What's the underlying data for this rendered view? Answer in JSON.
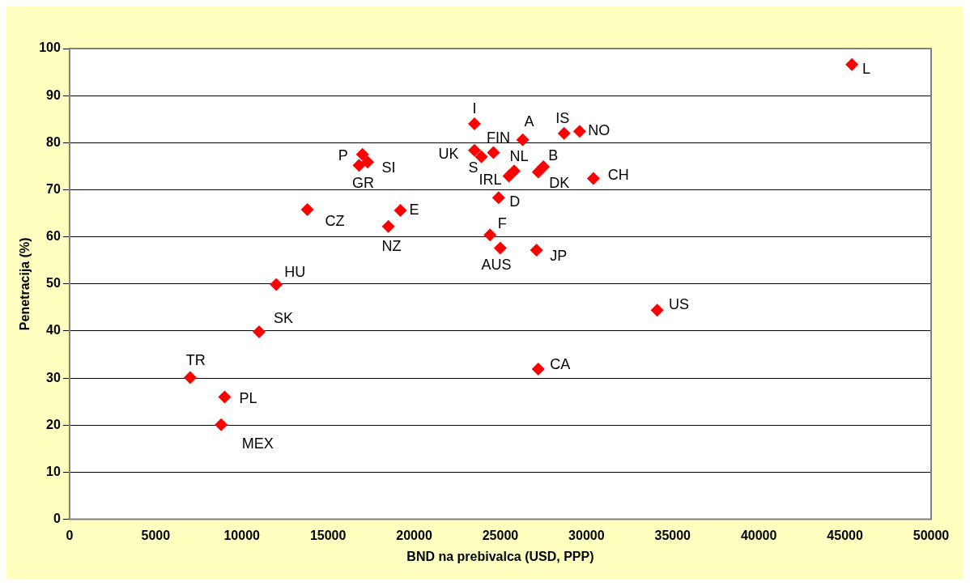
{
  "chart_data": {
    "type": "scatter",
    "xlabel": "BND na prebivalca (USD, PPP)",
    "ylabel": "Penetracija (%)",
    "xlim": [
      0,
      50000
    ],
    "xticks": [
      0,
      5000,
      10000,
      15000,
      20000,
      25000,
      30000,
      35000,
      40000,
      45000,
      50000
    ],
    "ylim": [
      0,
      100
    ],
    "yticks": [
      0,
      10,
      20,
      30,
      40,
      50,
      60,
      70,
      80,
      90,
      100
    ],
    "grid": "y",
    "legend": false,
    "marker": "diamond",
    "series": [
      {
        "color": "#ff0000",
        "x": [
          45400,
          23500,
          26300,
          28700,
          29600,
          23500,
          23900,
          24600,
          25500,
          25800,
          27500,
          27200,
          30400,
          24900,
          24400,
          25000,
          27100,
          13800,
          19200,
          18500,
          17000,
          17300,
          16800,
          12000,
          11000,
          7000,
          9000,
          8800,
          27200,
          34100
        ],
        "values": [
          96.6,
          84.0,
          80.6,
          82.0,
          82.4,
          78.4,
          77.0,
          77.9,
          72.9,
          74.0,
          74.9,
          73.8,
          72.4,
          68.3,
          60.4,
          57.6,
          57.2,
          65.8,
          65.6,
          62.2,
          77.5,
          75.9,
          75.2,
          49.9,
          39.8,
          30.1,
          26.0,
          20.1,
          31.9,
          44.4
        ]
      }
    ],
    "annotations": [
      {
        "text": "L",
        "x": 45400,
        "y": 96.6
      },
      {
        "text": "I",
        "x": 23500,
        "y": 84.0
      },
      {
        "text": "A",
        "x": 26300,
        "y": 80.6
      },
      {
        "text": "IS",
        "x": 28700,
        "y": 82.0
      },
      {
        "text": "NO",
        "x": 29600,
        "y": 82.4
      },
      {
        "text": "UK",
        "x": 23500,
        "y": 78.4
      },
      {
        "text": "S",
        "x": 23900,
        "y": 77.0
      },
      {
        "text": "FIN",
        "x": 24600,
        "y": 77.9
      },
      {
        "text": "IRL",
        "x": 25500,
        "y": 72.9
      },
      {
        "text": "NL",
        "x": 25800,
        "y": 74.0
      },
      {
        "text": "B",
        "x": 27500,
        "y": 74.9
      },
      {
        "text": "DK",
        "x": 27200,
        "y": 73.8
      },
      {
        "text": "CH",
        "x": 30400,
        "y": 72.4
      },
      {
        "text": "D",
        "x": 24900,
        "y": 68.3
      },
      {
        "text": "F",
        "x": 24400,
        "y": 60.4
      },
      {
        "text": "AUS",
        "x": 25000,
        "y": 57.6
      },
      {
        "text": "JP",
        "x": 27100,
        "y": 57.2
      },
      {
        "text": "CZ",
        "x": 13800,
        "y": 65.8
      },
      {
        "text": "E",
        "x": 19200,
        "y": 65.6
      },
      {
        "text": "NZ",
        "x": 18500,
        "y": 62.2
      },
      {
        "text": "P",
        "x": 17000,
        "y": 77.5
      },
      {
        "text": "SI",
        "x": 17300,
        "y": 75.9
      },
      {
        "text": "GR",
        "x": 16800,
        "y": 75.2
      },
      {
        "text": "HU",
        "x": 12000,
        "y": 49.9
      },
      {
        "text": "SK",
        "x": 11000,
        "y": 39.8
      },
      {
        "text": "TR",
        "x": 7000,
        "y": 30.1
      },
      {
        "text": "PL",
        "x": 9000,
        "y": 26.0
      },
      {
        "text": "MEX",
        "x": 8800,
        "y": 20.1
      },
      {
        "text": "CA",
        "x": 27200,
        "y": 31.9
      },
      {
        "text": "US",
        "x": 34100,
        "y": 44.4
      }
    ]
  }
}
